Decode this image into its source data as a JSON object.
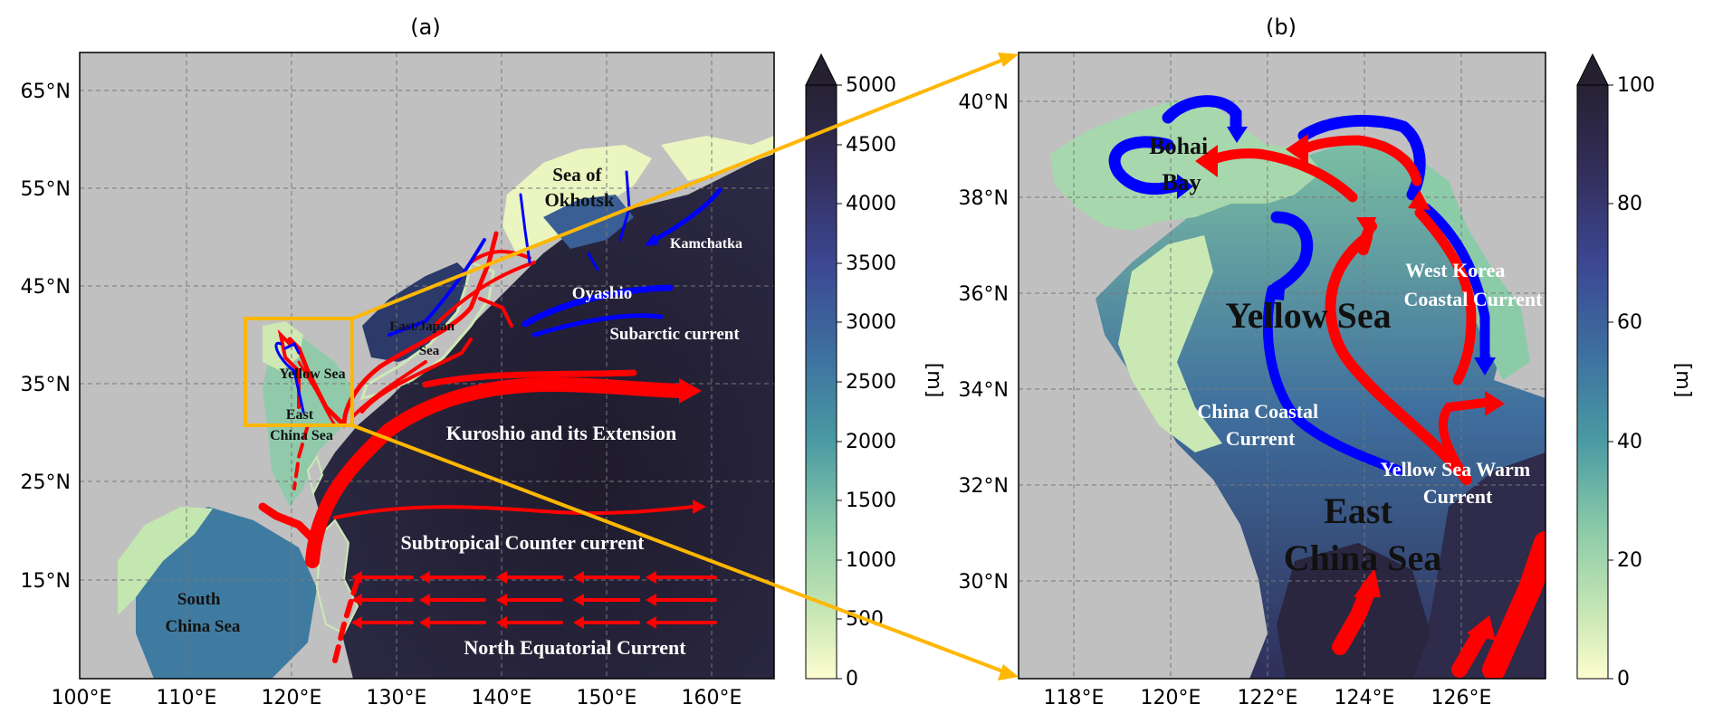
{
  "panels": [
    {
      "title": "(a)",
      "lat_labels": [
        "65°N",
        "55°N",
        "45°N",
        "35°N",
        "25°N",
        "15°N"
      ],
      "lon_labels": [
        "100°E",
        "110°E",
        "120°E",
        "130°E",
        "140°E",
        "150°E",
        "160°E"
      ],
      "colorbar": {
        "ticks": [
          "5000",
          "4500",
          "4000",
          "3500",
          "3000",
          "2500",
          "2000",
          "1500",
          "1000",
          "500",
          "0"
        ],
        "unit": "[m]"
      },
      "labels": {
        "sea_of_okhotsk": [
          "Sea of",
          "Okhotsk"
        ],
        "kamchatka": "Kamchatka",
        "oyashio": "Oyashio",
        "subarctic": "Subarctic current",
        "east_japan_sea": [
          "East/Japan",
          "Sea"
        ],
        "yellow_sea": "Yellow Sea",
        "east_china_sea": [
          "East",
          "China Sea"
        ],
        "kuroshio": "Kuroshio and its Extension",
        "subtropical": "Subtropical Counter current",
        "south_china_sea": [
          "South",
          "China Sea"
        ],
        "nec": "North Equatorial Current"
      }
    },
    {
      "title": "(b)",
      "lat_labels": [
        "40°N",
        "38°N",
        "36°N",
        "34°N",
        "32°N",
        "30°N"
      ],
      "lon_labels": [
        "118°E",
        "120°E",
        "122°E",
        "124°E",
        "126°E"
      ],
      "colorbar": {
        "ticks": [
          "100",
          "80",
          "60",
          "40",
          "20",
          "0"
        ],
        "unit": "[m]"
      },
      "labels": {
        "bohai": [
          "Bohai",
          "Bay"
        ],
        "yellow_sea": "Yellow Sea",
        "west_korea": [
          "West Korea",
          "Coastal Current"
        ],
        "china_coastal": [
          "China Coastal",
          "Current"
        ],
        "ysw": [
          "Yellow Sea Warm",
          "Current"
        ],
        "east_china_sea": [
          "East",
          "China Sea"
        ]
      }
    }
  ],
  "colors": {
    "land": "#c0c0c0",
    "warm_current": "#ff0000",
    "cold_current": "#0000ff",
    "zoom_box": "#ffb700",
    "ocean_deep": "#262131",
    "ocean_shallow": "#f0f6c2"
  }
}
